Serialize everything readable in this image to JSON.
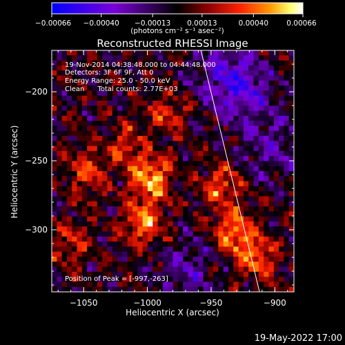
{
  "chart_data": {
    "type": "heatmap",
    "title": "Reconstructed RHESSI Image",
    "xlabel": "Heliocentric X (arcsec)",
    "ylabel": "Heliocentric Y (arcsec)",
    "xlim": [
      -1075,
      -885
    ],
    "ylim": [
      -345,
      -170
    ],
    "x_ticks": [
      -1050,
      -1000,
      -950,
      -900
    ],
    "x_tick_labels": [
      "−1050",
      "−1000",
      "−950",
      "−900"
    ],
    "y_ticks": [
      -200,
      -250,
      -300
    ],
    "y_tick_labels": [
      "−200",
      "−250",
      "−300"
    ],
    "colorbar": {
      "min": -0.00066,
      "max": 0.00066,
      "ticks": [
        -0.00066,
        -0.0004,
        -0.00013,
        0.00013,
        0.0004,
        0.00066
      ],
      "tick_labels": [
        "−0.00066",
        "−0.00040",
        "−0.00013",
        "0.00013",
        "0.00040",
        "0.00066"
      ],
      "unit_label": "(photons cm⁻² s⁻¹ asec⁻²)",
      "colormap": [
        "#0000ff",
        "#7a00d8",
        "#000000",
        "#8a0000",
        "#ff2200",
        "#ff9900",
        "#ffff70",
        "#ffffff"
      ]
    },
    "annotations": [
      "19-Nov-2014 04:38:48.000 to 04:44:48.000",
      "Detectors: 3F 6F 9F, Att 0",
      "Energy Range: 25.0 - 50.0 keV",
      "Clean      Total counts: 2.77E+03"
    ],
    "peak_label": "Position of Peak = [-997,-263]",
    "peak": {
      "x": -997,
      "y": -263
    },
    "limb_line": [
      [
        -958,
        -170
      ],
      [
        -912,
        -345
      ]
    ],
    "bright_regions": [
      {
        "x": -997,
        "y": -263,
        "level": 1.0
      },
      {
        "x": -1003,
        "y": -295,
        "level": 0.85
      },
      {
        "x": -932,
        "y": -300,
        "level": 0.85
      },
      {
        "x": -942,
        "y": -268,
        "level": 0.7
      },
      {
        "x": -915,
        "y": -320,
        "level": 0.75
      },
      {
        "x": -1048,
        "y": -258,
        "level": 0.6
      },
      {
        "x": -1018,
        "y": -240,
        "level": 0.55
      },
      {
        "x": -1060,
        "y": -310,
        "level": 0.5
      },
      {
        "x": -985,
        "y": -215,
        "level": 0.5
      }
    ],
    "dark_regions": [
      {
        "x": -925,
        "y": -200,
        "level": -0.7
      },
      {
        "x": -940,
        "y": -185,
        "level": -0.6
      },
      {
        "x": -970,
        "y": -330,
        "level": -0.5
      },
      {
        "x": -905,
        "y": -240,
        "level": -0.5
      }
    ]
  },
  "footer": {
    "date": "19-May-2022 17:00"
  }
}
